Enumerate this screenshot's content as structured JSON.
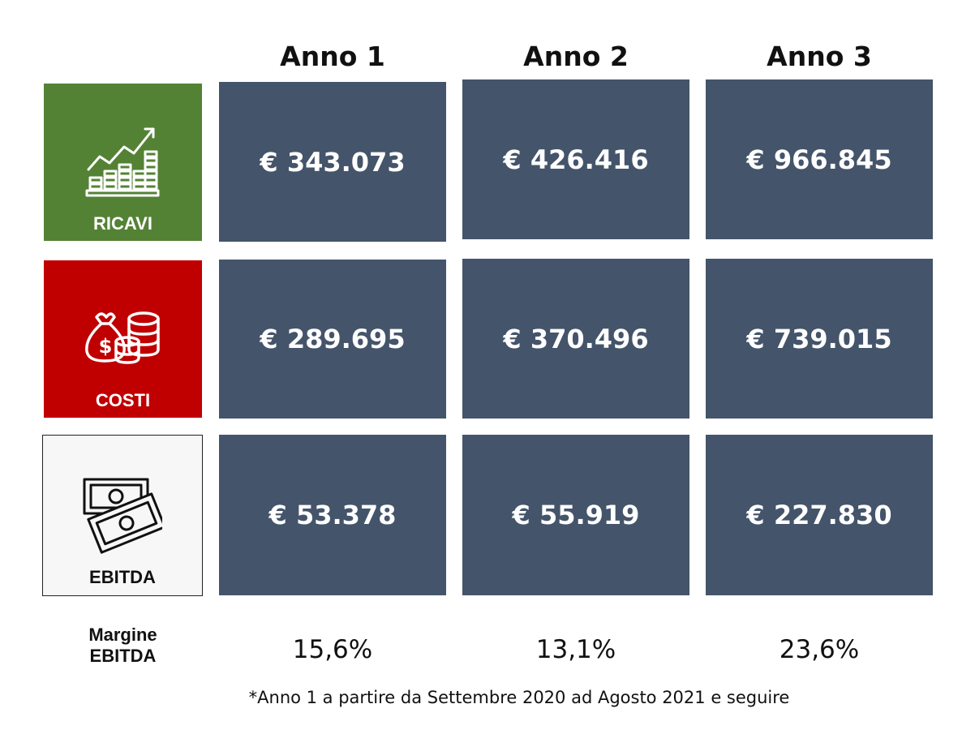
{
  "columns": [
    "Anno 1",
    "Anno 2",
    "Anno 3"
  ],
  "rows": [
    {
      "label": "RICAVI",
      "icon": "revenue-growth-icon",
      "color": "#548235",
      "values": [
        "€ 343.073",
        "€ 426.416",
        "€ 966.845"
      ]
    },
    {
      "label": "COSTI",
      "icon": "money-bag-coins-icon",
      "color": "#c00000",
      "values": [
        "€ 289.695",
        "€ 370.496",
        "€ 739.015"
      ]
    },
    {
      "label": "EBITDA",
      "icon": "banknotes-icon",
      "color": "#f7f7f7",
      "values": [
        "€ 53.378",
        "€ 55.919",
        "€ 227.830"
      ]
    }
  ],
  "margin": {
    "label_line1": "Margine",
    "label_line2": "EBITDA",
    "values": [
      "15,6%",
      "13,1%",
      "23,6%"
    ]
  },
  "cell_color": "#44546a",
  "footnote": "*Anno 1 a partire da Settembre 2020 ad Agosto 2021 e seguire"
}
